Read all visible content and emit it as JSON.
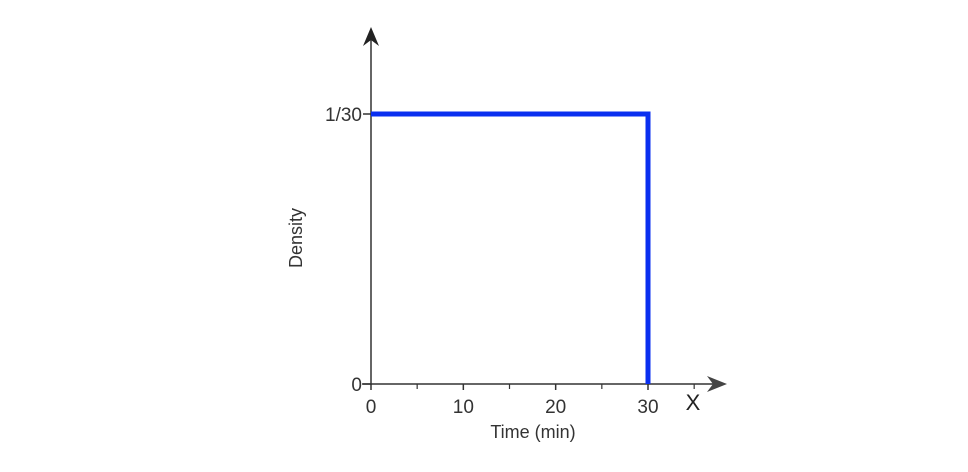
{
  "chart_data": {
    "type": "line",
    "title": "",
    "xlabel": "Time (min)",
    "ylabel": "Density",
    "x_variable": "X",
    "xlim": [
      0,
      35
    ],
    "ylim": [
      0,
      0.04
    ],
    "x_ticks": [
      {
        "value": 0,
        "label": "0"
      },
      {
        "value": 10,
        "label": "10"
      },
      {
        "value": 20,
        "label": "20"
      },
      {
        "value": 30,
        "label": "30"
      }
    ],
    "x_minor_ticks": [
      5,
      15,
      25,
      35
    ],
    "y_ticks": [
      {
        "value": 0,
        "label": "0"
      },
      {
        "value": 0.0333333,
        "label": "1/30"
      }
    ],
    "grid": false,
    "series": [
      {
        "color": "#0a2ff0",
        "x": [
          0,
          30,
          30
        ],
        "y": [
          0.0333333,
          0.0333333,
          0
        ]
      }
    ]
  },
  "colors": {
    "axis": "#333333",
    "series": "#0a2ff0"
  }
}
